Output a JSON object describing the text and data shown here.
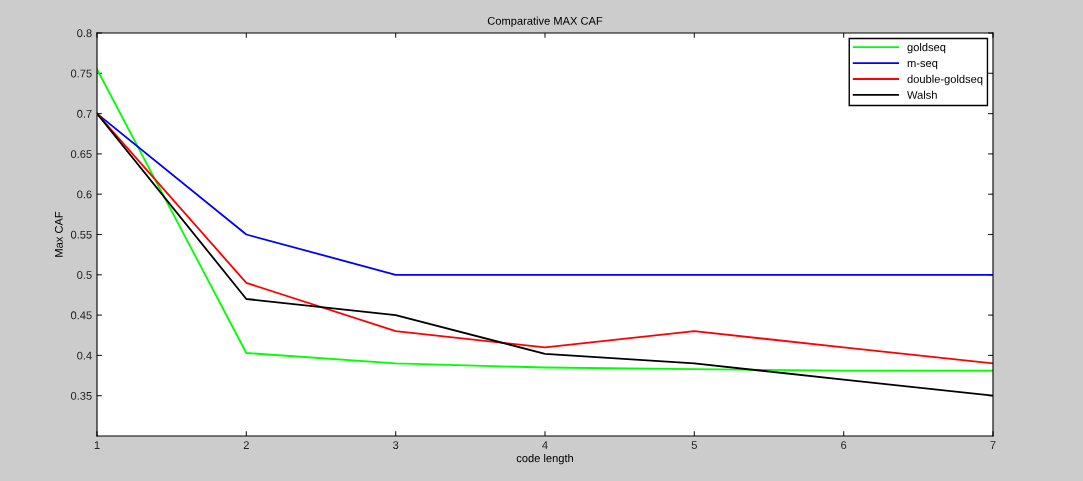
{
  "chart_data": {
    "type": "line",
    "title": "Comparative MAX CAF",
    "xlabel": "code length",
    "ylabel": "Max CAF",
    "x": [
      1,
      2,
      3,
      4,
      5,
      6,
      7
    ],
    "series": [
      {
        "name": "goldseq",
        "color": "#00ff00",
        "values": [
          0.755,
          0.403,
          0.39,
          0.385,
          0.383,
          0.381,
          0.381
        ]
      },
      {
        "name": "m-seq",
        "color": "#0000ff",
        "values": [
          0.7,
          0.55,
          0.5,
          0.5,
          0.5,
          0.5,
          0.5
        ]
      },
      {
        "name": "double-goldseq",
        "color": "#ff0000",
        "values": [
          0.7,
          0.49,
          0.43,
          0.41,
          0.43,
          0.41,
          0.39
        ]
      },
      {
        "name": "Walsh",
        "color": "#000000",
        "values": [
          0.7,
          0.47,
          0.45,
          0.402,
          0.39,
          0.37,
          0.35
        ]
      }
    ],
    "xlim": [
      1,
      7
    ],
    "xticks": [
      1,
      2,
      3,
      4,
      5,
      6,
      7
    ],
    "ylim": [
      0.3,
      0.8
    ],
    "yticks": [
      0.35,
      0.4,
      0.45,
      0.5,
      0.55,
      0.6,
      0.65,
      0.7,
      0.75,
      0.8
    ],
    "grid": false,
    "legend": "top right",
    "marker": "none",
    "line_style": "solid"
  }
}
